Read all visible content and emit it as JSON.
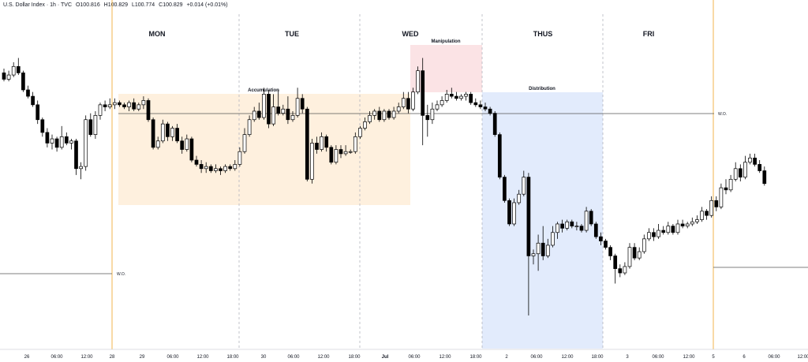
{
  "header": {
    "symbol": "U.S. Dollar Index · 1h · TVC",
    "open": "O100.816",
    "high": "H100.829",
    "low": "L100.774",
    "close": "C100.829",
    "change": "+0.014 (+0.01%)"
  },
  "colors": {
    "up_candle": "#ffffff",
    "down_candle": "#000000",
    "candle_outline": "#000000",
    "accumulation_zone": "#fdebd3",
    "manipulation_zone": "#f9d9dc",
    "distribution_zone": "#dde7fb",
    "week_separator": "#f0b44c",
    "day_separator": "#b2b5be",
    "open_level": "#555555"
  },
  "chart_data": {
    "type": "candlestick",
    "title": "",
    "xlabel": "",
    "ylabel": "",
    "y_axis_shown": false,
    "grid": false,
    "ylim": [
      99.6,
      101.1
    ],
    "days": [
      "MON",
      "TUE",
      "WED",
      "THUS",
      "FRI"
    ],
    "x_ticks": [
      "26",
      "06:00",
      "12:00",
      "28",
      "29",
      "06:00",
      "12:00",
      "18:00",
      "30",
      "06:00",
      "12:00",
      "18:00",
      "Jul",
      "06:00",
      "12:00",
      "18:00",
      "2",
      "06:00",
      "12:00",
      "18:00",
      "3",
      "06:00",
      "12:00",
      "5",
      "6",
      "06:00",
      "12:00"
    ],
    "annotations": [
      {
        "label": "Accumulation"
      },
      {
        "label": "Manipulation"
      },
      {
        "label": "Distribution"
      }
    ],
    "levels": [
      {
        "label": "W.O.",
        "value": 100.82,
        "scope": "current week"
      },
      {
        "label": "W.O.",
        "value": 100.23,
        "scope": "previous week"
      }
    ],
    "candles": [
      [
        100.96,
        100.93,
        100.98,
        100.92
      ],
      [
        100.93,
        100.95,
        100.97,
        100.92
      ],
      [
        100.95,
        100.99,
        101.01,
        100.94
      ],
      [
        100.99,
        100.96,
        101.03,
        100.95
      ],
      [
        100.96,
        100.88,
        100.97,
        100.87
      ],
      [
        100.88,
        100.85,
        100.9,
        100.84
      ],
      [
        100.85,
        100.81,
        100.87,
        100.8
      ],
      [
        100.81,
        100.74,
        100.83,
        100.72
      ],
      [
        100.74,
        100.68,
        100.75,
        100.66
      ],
      [
        100.68,
        100.63,
        100.7,
        100.61
      ],
      [
        100.63,
        100.65,
        100.67,
        100.6
      ],
      [
        100.65,
        100.61,
        100.66,
        100.59
      ],
      [
        100.61,
        100.66,
        100.71,
        100.6
      ],
      [
        100.66,
        100.63,
        100.68,
        100.62
      ],
      [
        100.63,
        100.64,
        100.65,
        100.6
      ],
      [
        100.64,
        100.51,
        100.65,
        100.48
      ],
      [
        100.51,
        100.52,
        100.54,
        100.46
      ],
      [
        100.52,
        100.74,
        100.76,
        100.5
      ],
      [
        100.74,
        100.67,
        100.77,
        100.66
      ],
      [
        100.67,
        100.76,
        100.78,
        100.65
      ],
      [
        100.76,
        100.81,
        100.82,
        100.74
      ],
      [
        100.81,
        100.8,
        100.83,
        100.78
      ],
      [
        100.8,
        100.81,
        100.84,
        100.79
      ],
      [
        100.81,
        100.82,
        100.84,
        100.79
      ],
      [
        100.82,
        100.81,
        100.83,
        100.8
      ],
      [
        100.81,
        100.8,
        100.82,
        100.79
      ],
      [
        100.8,
        100.82,
        100.83,
        100.78
      ],
      [
        100.82,
        100.79,
        100.84,
        100.78
      ],
      [
        100.79,
        100.81,
        100.82,
        100.78
      ],
      [
        100.81,
        100.83,
        100.85,
        100.79
      ],
      [
        100.83,
        100.74,
        100.84,
        100.73
      ],
      [
        100.74,
        100.61,
        100.75,
        100.6
      ],
      [
        100.61,
        100.64,
        100.66,
        100.6
      ],
      [
        100.64,
        100.72,
        100.74,
        100.63
      ],
      [
        100.72,
        100.66,
        100.73,
        100.64
      ],
      [
        100.66,
        100.7,
        100.71,
        100.64
      ],
      [
        100.7,
        100.64,
        100.72,
        100.63
      ],
      [
        100.64,
        100.6,
        100.66,
        100.58
      ],
      [
        100.6,
        100.65,
        100.67,
        100.59
      ],
      [
        100.65,
        100.55,
        100.66,
        100.54
      ],
      [
        100.55,
        100.53,
        100.57,
        100.52
      ],
      [
        100.53,
        100.51,
        100.55,
        100.49
      ],
      [
        100.51,
        100.52,
        100.54,
        100.49
      ],
      [
        100.52,
        100.5,
        100.53,
        100.49
      ],
      [
        100.5,
        100.51,
        100.53,
        100.49
      ],
      [
        100.51,
        100.5,
        100.52,
        100.48
      ],
      [
        100.5,
        100.52,
        100.53,
        100.49
      ],
      [
        100.52,
        100.51,
        100.53,
        100.5
      ],
      [
        100.51,
        100.53,
        100.55,
        100.5
      ],
      [
        100.53,
        100.59,
        100.61,
        100.52
      ],
      [
        100.59,
        100.67,
        100.7,
        100.58
      ],
      [
        100.67,
        100.74,
        100.76,
        100.66
      ],
      [
        100.74,
        100.78,
        100.8,
        100.73
      ],
      [
        100.78,
        100.75,
        100.82,
        100.74
      ],
      [
        100.75,
        100.86,
        100.89,
        100.74
      ],
      [
        100.86,
        100.72,
        100.88,
        100.7
      ],
      [
        100.72,
        100.8,
        100.86,
        100.71
      ],
      [
        100.8,
        100.77,
        100.88,
        100.76
      ],
      [
        100.77,
        100.79,
        100.81,
        100.76
      ],
      [
        100.79,
        100.74,
        100.85,
        100.72
      ],
      [
        100.74,
        100.76,
        100.78,
        100.73
      ],
      [
        100.76,
        100.84,
        100.89,
        100.75
      ],
      [
        100.84,
        100.79,
        100.86,
        100.77
      ],
      [
        100.79,
        100.46,
        100.8,
        100.45
      ],
      [
        100.46,
        100.63,
        100.65,
        100.44
      ],
      [
        100.63,
        100.6,
        100.66,
        100.58
      ],
      [
        100.6,
        100.66,
        100.68,
        100.59
      ],
      [
        100.66,
        100.61,
        100.67,
        100.59
      ],
      [
        100.61,
        100.54,
        100.62,
        100.53
      ],
      [
        100.54,
        100.6,
        100.62,
        100.53
      ],
      [
        100.6,
        100.58,
        100.62,
        100.56
      ],
      [
        100.58,
        100.59,
        100.62,
        100.57
      ],
      [
        100.59,
        100.59,
        100.6,
        100.58
      ],
      [
        100.59,
        100.66,
        100.68,
        100.58
      ],
      [
        100.66,
        100.7,
        100.71,
        100.65
      ],
      [
        100.7,
        100.73,
        100.75,
        100.69
      ],
      [
        100.73,
        100.76,
        100.78,
        100.72
      ],
      [
        100.76,
        100.78,
        100.79,
        100.74
      ],
      [
        100.78,
        100.74,
        100.8,
        100.73
      ],
      [
        100.74,
        100.78,
        100.79,
        100.73
      ],
      [
        100.78,
        100.75,
        100.79,
        100.74
      ],
      [
        100.75,
        100.78,
        100.8,
        100.74
      ],
      [
        100.78,
        100.8,
        100.82,
        100.77
      ],
      [
        100.8,
        100.84,
        100.87,
        100.79
      ],
      [
        100.84,
        100.79,
        100.87,
        100.77
      ],
      [
        100.79,
        100.87,
        100.89,
        100.78
      ],
      [
        100.87,
        100.97,
        100.99,
        100.86
      ],
      [
        100.97,
        100.76,
        101.03,
        100.62
      ],
      [
        100.76,
        100.74,
        100.81,
        100.66
      ],
      [
        100.74,
        100.79,
        100.82,
        100.72
      ],
      [
        100.79,
        100.81,
        100.83,
        100.78
      ],
      [
        100.81,
        100.83,
        100.85,
        100.8
      ],
      [
        100.83,
        100.86,
        100.88,
        100.82
      ],
      [
        100.86,
        100.85,
        100.89,
        100.84
      ],
      [
        100.85,
        100.84,
        100.87,
        100.83
      ],
      [
        100.84,
        100.85,
        100.86,
        100.83
      ],
      [
        100.85,
        100.86,
        100.87,
        100.83
      ],
      [
        100.86,
        100.82,
        100.87,
        100.81
      ],
      [
        100.82,
        100.81,
        100.84,
        100.8
      ],
      [
        100.81,
        100.8,
        100.83,
        100.79
      ],
      [
        100.8,
        100.79,
        100.82,
        100.78
      ],
      [
        100.79,
        100.77,
        100.8,
        100.76
      ],
      [
        100.77,
        100.67,
        100.78,
        100.66
      ],
      [
        100.67,
        100.47,
        100.68,
        100.46
      ],
      [
        100.47,
        100.36,
        100.48,
        100.35
      ],
      [
        100.36,
        100.25,
        100.37,
        100.24
      ],
      [
        100.25,
        100.35,
        100.37,
        100.24
      ],
      [
        100.35,
        100.39,
        100.41,
        100.34
      ],
      [
        100.39,
        100.47,
        100.5,
        100.38
      ],
      [
        100.47,
        100.1,
        100.49,
        99.82
      ],
      [
        100.1,
        100.11,
        100.13,
        100.06
      ],
      [
        100.11,
        100.16,
        100.2,
        100.03
      ],
      [
        100.16,
        100.1,
        100.24,
        100.08
      ],
      [
        100.1,
        100.15,
        100.18,
        100.09
      ],
      [
        100.15,
        100.21,
        100.24,
        100.14
      ],
      [
        100.21,
        100.25,
        100.26,
        100.18
      ],
      [
        100.25,
        100.23,
        100.27,
        100.21
      ],
      [
        100.23,
        100.26,
        100.27,
        100.22
      ],
      [
        100.26,
        100.24,
        100.27,
        100.23
      ],
      [
        100.24,
        100.24,
        100.26,
        100.22
      ],
      [
        100.24,
        100.22,
        100.25,
        100.21
      ],
      [
        100.22,
        100.31,
        100.33,
        100.21
      ],
      [
        100.31,
        100.25,
        100.32,
        100.24
      ],
      [
        100.25,
        100.19,
        100.26,
        100.18
      ],
      [
        100.19,
        100.17,
        100.21,
        100.15
      ],
      [
        100.17,
        100.14,
        100.18,
        100.13
      ],
      [
        100.14,
        100.1,
        100.15,
        100.08
      ],
      [
        100.1,
        100.04,
        100.11,
        99.97
      ],
      [
        100.04,
        100.02,
        100.06,
        100.0
      ],
      [
        100.02,
        100.05,
        100.07,
        100.01
      ],
      [
        100.05,
        100.14,
        100.16,
        100.04
      ],
      [
        100.14,
        100.09,
        100.16,
        100.08
      ],
      [
        100.09,
        100.12,
        100.14,
        100.08
      ],
      [
        100.12,
        100.18,
        100.2,
        100.11
      ],
      [
        100.18,
        100.21,
        100.23,
        100.17
      ],
      [
        100.21,
        100.19,
        100.23,
        100.17
      ],
      [
        100.19,
        100.22,
        100.25,
        100.18
      ],
      [
        100.22,
        100.21,
        100.24,
        100.2
      ],
      [
        100.21,
        100.24,
        100.26,
        100.2
      ],
      [
        100.24,
        100.21,
        100.25,
        100.2
      ],
      [
        100.21,
        100.25,
        100.27,
        100.2
      ],
      [
        100.25,
        100.24,
        100.27,
        100.23
      ],
      [
        100.24,
        100.25,
        100.26,
        100.23
      ],
      [
        100.25,
        100.26,
        100.28,
        100.24
      ],
      [
        100.26,
        100.27,
        100.29,
        100.25
      ],
      [
        100.27,
        100.31,
        100.33,
        100.26
      ],
      [
        100.31,
        100.29,
        100.32,
        100.27
      ],
      [
        100.29,
        100.36,
        100.38,
        100.28
      ],
      [
        100.36,
        100.33,
        100.38,
        100.31
      ],
      [
        100.33,
        100.42,
        100.44,
        100.32
      ],
      [
        100.42,
        100.41,
        100.46,
        100.39
      ],
      [
        100.41,
        100.46,
        100.48,
        100.4
      ],
      [
        100.46,
        100.51,
        100.54,
        100.45
      ],
      [
        100.51,
        100.47,
        100.53,
        100.45
      ],
      [
        100.47,
        100.54,
        100.57,
        100.46
      ],
      [
        100.54,
        100.56,
        100.58,
        100.53
      ],
      [
        100.56,
        100.53,
        100.58,
        100.52
      ],
      [
        100.53,
        100.5,
        100.55,
        100.49
      ],
      [
        100.5,
        100.44,
        100.52,
        100.43
      ]
    ]
  }
}
